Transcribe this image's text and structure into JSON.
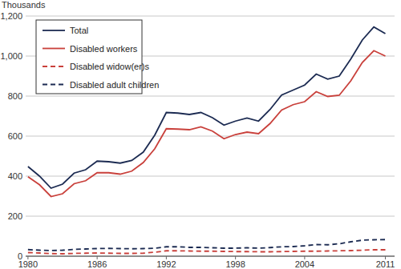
{
  "chart_data": {
    "type": "line",
    "y_label": "Thousands",
    "x": [
      1980,
      1981,
      1982,
      1983,
      1984,
      1985,
      1986,
      1987,
      1988,
      1989,
      1990,
      1991,
      1992,
      1993,
      1994,
      1995,
      1996,
      1997,
      1998,
      1999,
      2000,
      2001,
      2002,
      2003,
      2004,
      2005,
      2006,
      2007,
      2008,
      2009,
      2010,
      2011
    ],
    "series": [
      {
        "name": "Total",
        "color": "#1c2b52",
        "line_style": "solid",
        "values": [
          448,
          400,
          340,
          360,
          415,
          432,
          475,
          472,
          465,
          478,
          520,
          605,
          718,
          715,
          708,
          718,
          692,
          655,
          675,
          690,
          675,
          733,
          805,
          830,
          855,
          910,
          885,
          900,
          985,
          1080,
          1145,
          1112
        ]
      },
      {
        "name": "Disabled workers",
        "color": "#c9403b",
        "line_style": "solid",
        "values": [
          397,
          357,
          298,
          312,
          362,
          377,
          417,
          417,
          410,
          425,
          468,
          537,
          637,
          635,
          632,
          646,
          625,
          587,
          608,
          620,
          612,
          663,
          730,
          757,
          772,
          822,
          798,
          804,
          876,
          968,
          1027,
          1000
        ]
      },
      {
        "name": "Disabled widow(er)s",
        "color": "#c9403b",
        "line_style": "dashed",
        "values": [
          18,
          16,
          13,
          12,
          14,
          15,
          16,
          15,
          14,
          14,
          15,
          20,
          27,
          27,
          26,
          25,
          25,
          24,
          23,
          23,
          22,
          22,
          23,
          24,
          25,
          25,
          26,
          27,
          28,
          30,
          32,
          32
        ]
      },
      {
        "name": "Disabled adult children",
        "color": "#1c2b52",
        "line_style": "dashed",
        "values": [
          33,
          30,
          28,
          30,
          34,
          36,
          38,
          39,
          38,
          37,
          38,
          40,
          47,
          47,
          44,
          44,
          42,
          40,
          40,
          42,
          40,
          43,
          47,
          48,
          52,
          58,
          57,
          62,
          72,
          80,
          82,
          83
        ]
      }
    ],
    "xlim": [
      1979.8,
      2011.8
    ],
    "xticks": [
      1980,
      1986,
      1992,
      1998,
      2004,
      2011
    ],
    "ylim": [
      0,
      1200
    ],
    "yticks": [
      0,
      200,
      400,
      600,
      800,
      {
        "value": 1000,
        "label": "1,000"
      },
      {
        "value": 1200,
        "label": "1,200"
      }
    ],
    "grid": true,
    "legend": "upper left"
  }
}
